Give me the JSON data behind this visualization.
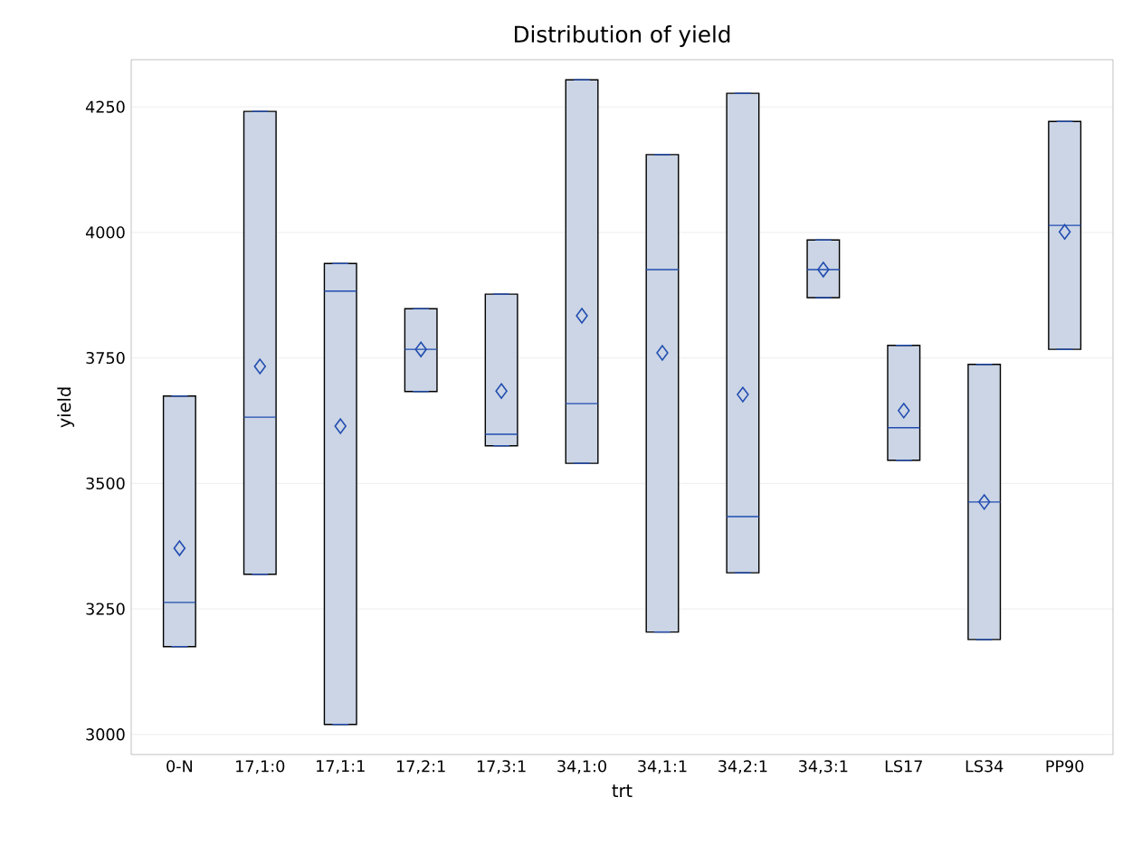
{
  "chart_data": {
    "type": "box",
    "title": "Distribution of yield",
    "xlabel": "trt",
    "ylabel": "yield",
    "categories": [
      "0-N",
      "17,1:0",
      "17,1:1",
      "17,2:1",
      "17,3:1",
      "34,1:0",
      "34,1:1",
      "34,2:1",
      "34,3:1",
      "LS17",
      "LS34",
      "PP90"
    ],
    "color": "#cbd5e5",
    "boxes": [
      {
        "low": 3175,
        "q1": 3175,
        "median": 3263,
        "q3": 3674,
        "high": 3674,
        "mean": 3371
      },
      {
        "low": 3319,
        "q1": 3319,
        "median": 3632,
        "q3": 4241,
        "high": 4241,
        "mean": 3733
      },
      {
        "low": 3020,
        "q1": 3020,
        "median": 3883,
        "q3": 3938,
        "high": 3938,
        "mean": 3614
      },
      {
        "low": 3683,
        "q1": 3683,
        "median": 3767,
        "q3": 3848,
        "high": 3848,
        "mean": 3767
      },
      {
        "low": 3575,
        "q1": 3575,
        "median": 3598,
        "q3": 3877,
        "high": 3877,
        "mean": 3684
      },
      {
        "low": 3540,
        "q1": 3540,
        "median": 3659,
        "q3": 4304,
        "high": 4304,
        "mean": 3834
      },
      {
        "low": 3204,
        "q1": 3204,
        "median": 3926,
        "q3": 4155,
        "high": 4155,
        "mean": 3760
      },
      {
        "low": 3322,
        "q1": 3322,
        "median": 3434,
        "q3": 4277,
        "high": 4277,
        "mean": 3677
      },
      {
        "low": 3870,
        "q1": 3870,
        "median": 3926,
        "q3": 3985,
        "high": 3985,
        "mean": 3926
      },
      {
        "low": 3546,
        "q1": 3546,
        "median": 3611,
        "q3": 3775,
        "high": 3775,
        "mean": 3645
      },
      {
        "low": 3189,
        "q1": 3189,
        "median": 3463,
        "q3": 3737,
        "high": 3737,
        "mean": 3463
      },
      {
        "low": 3767,
        "q1": 3767,
        "median": 4014,
        "q3": 4221,
        "high": 4221,
        "mean": 4001
      }
    ],
    "ylim": [
      2960,
      4344
    ],
    "yticks": [
      3000,
      3250,
      3500,
      3750,
      4000,
      4250
    ],
    "grid": "y",
    "marker": "diamond"
  }
}
